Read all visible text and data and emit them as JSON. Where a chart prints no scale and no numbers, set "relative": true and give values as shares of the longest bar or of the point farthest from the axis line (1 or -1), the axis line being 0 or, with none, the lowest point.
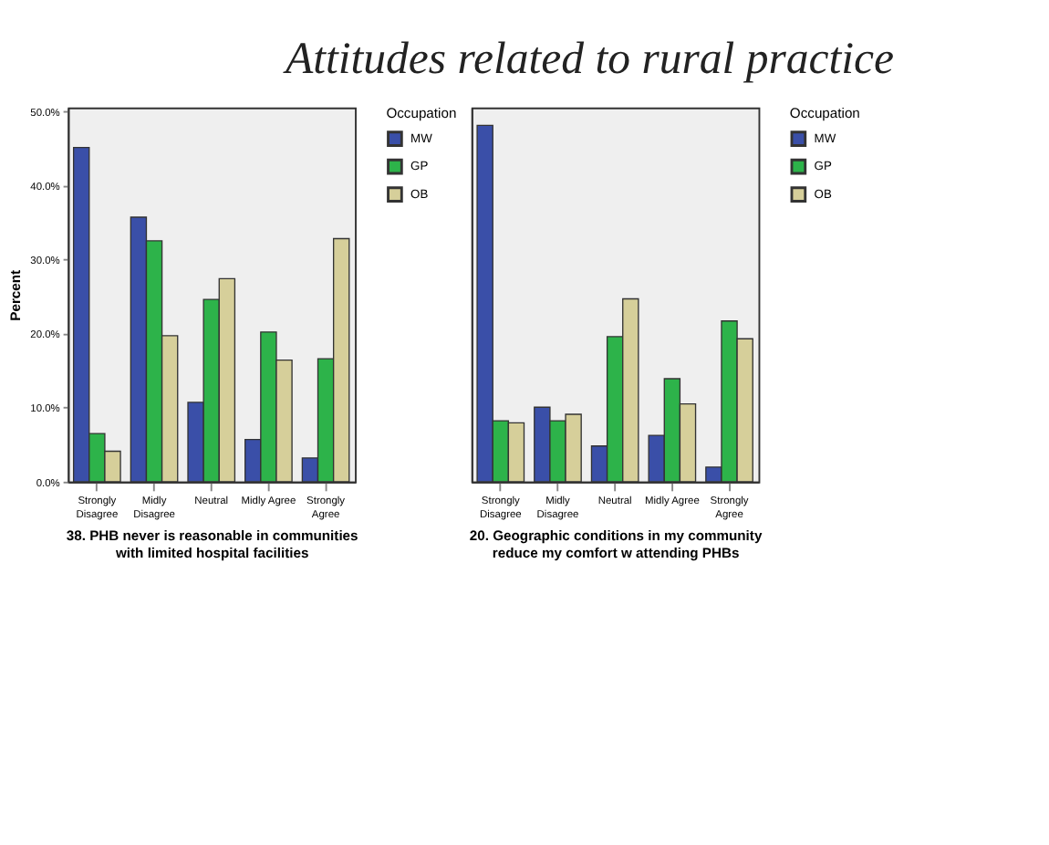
{
  "chart_data": [
    {
      "type": "other",
      "title": "Attitudes related to rural practice"
    },
    {
      "type": "bar",
      "xlabel": "38. PHB never is reasonable in communities with limited hospital facilities",
      "ylabel": "Percent",
      "legend_title": "Occupation",
      "legend": "right",
      "grid": false,
      "categories": [
        "Strongly Disagree",
        "Midly Disagree",
        "Neutral",
        "Midly Agree",
        "Strongly Agree"
      ],
      "series": [
        {
          "name": "MW",
          "color": "#3a4fa8",
          "values": [
            45.1,
            35.7,
            10.7,
            5.7,
            3.2
          ]
        },
        {
          "name": "GP",
          "color": "#2db34a",
          "values": [
            6.5,
            32.5,
            24.6,
            20.2,
            16.6
          ]
        },
        {
          "name": "OB",
          "color": "#d6cf9a",
          "values": [
            4.1,
            19.7,
            27.4,
            16.4,
            32.8
          ]
        }
      ],
      "ylim": [
        0,
        50.5
      ],
      "yticks": [
        {
          "value": 0,
          "label": "0.0%"
        },
        {
          "value": 10,
          "label": "10.0%"
        },
        {
          "value": 20,
          "label": "20.0%"
        },
        {
          "value": 30,
          "label": "30.0%"
        },
        {
          "value": 40,
          "label": "40.0%"
        },
        {
          "value": 50,
          "label": "50.0%"
        }
      ]
    },
    {
      "type": "bar",
      "relative": true,
      "xlabel": "20. Geographic conditions in my community reduce my comfort w attending PHBs",
      "legend_title": "Occupation",
      "legend": "right",
      "grid": false,
      "categories": [
        "Strongly Disagree",
        "Midly Disagree",
        "Neutral",
        "Midly Agree",
        "Strongly Agree"
      ],
      "series": [
        {
          "name": "MW",
          "color": "#3a4fa8",
          "values": [
            1,
            0.209,
            0.1,
            0.13,
            0.041
          ]
        },
        {
          "name": "GP",
          "color": "#2db34a",
          "values": [
            0.171,
            0.171,
            0.407,
            0.289,
            0.451
          ]
        },
        {
          "name": "OB",
          "color": "#d6cf9a",
          "values": [
            0.165,
            0.189,
            0.513,
            0.218,
            0.401
          ]
        }
      ]
    }
  ]
}
